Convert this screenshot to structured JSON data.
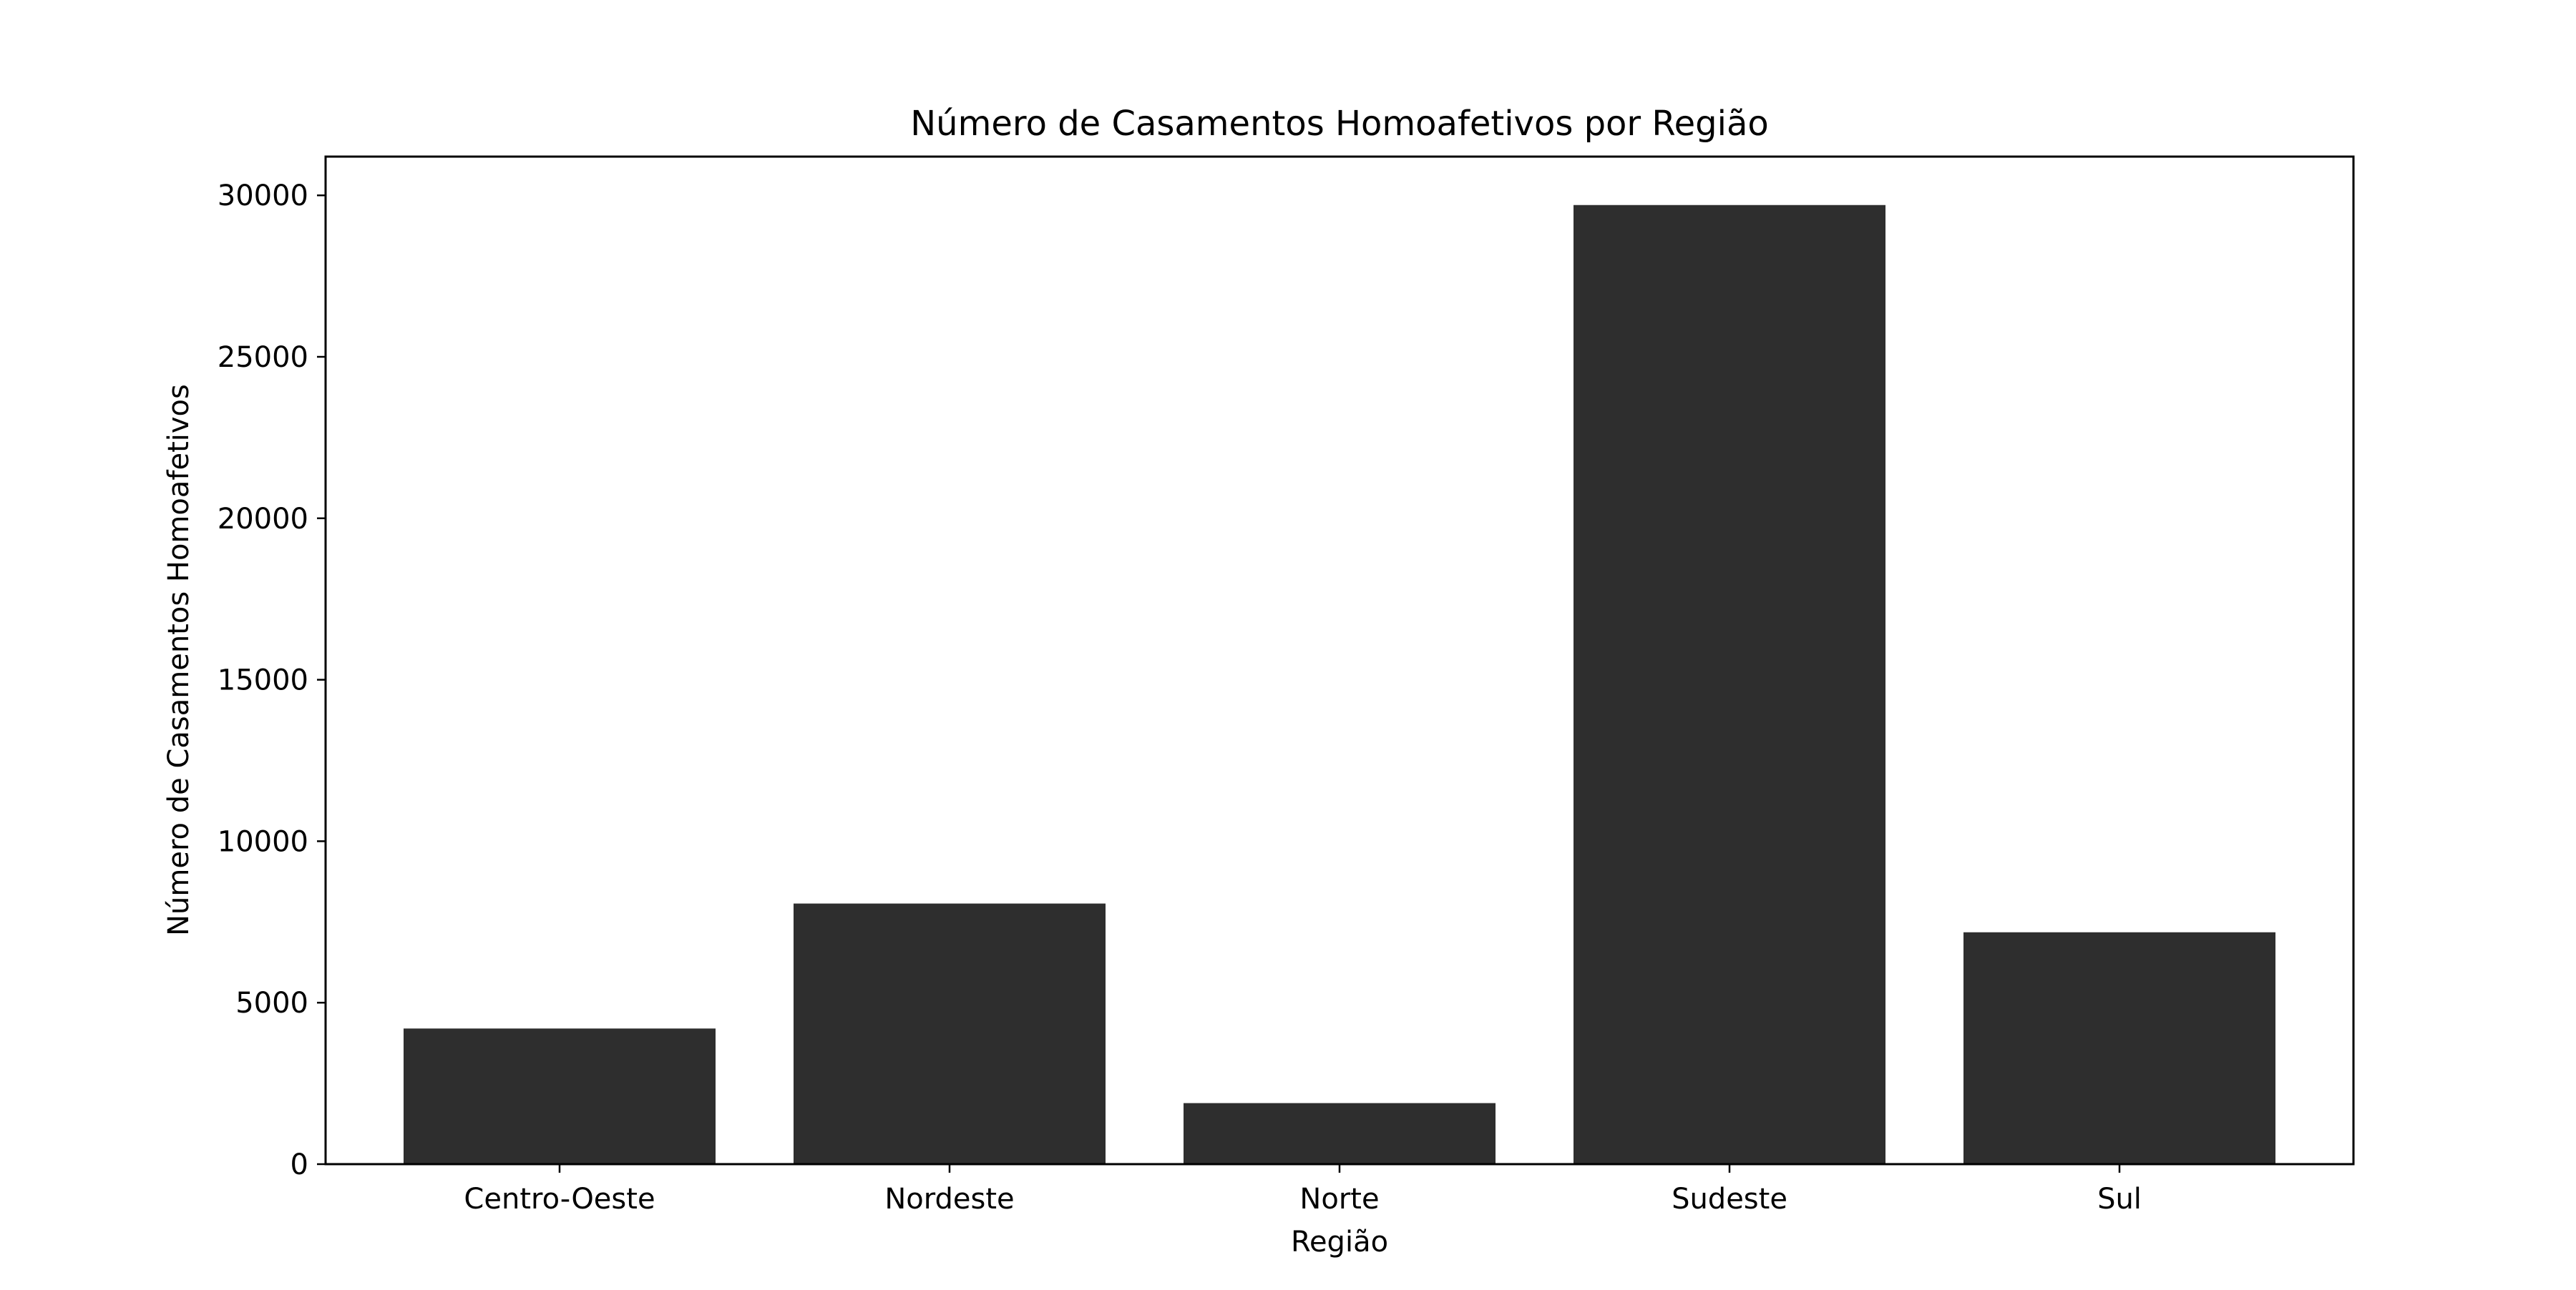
{
  "chart_data": {
    "type": "bar",
    "title": "Número de Casamentos Homoafetivos por Região",
    "xlabel": "Região",
    "ylabel": "Número de Casamentos Homoafetivos",
    "categories": [
      "Centro-Oeste",
      "Nordeste",
      "Norte",
      "Sudeste",
      "Sul"
    ],
    "values": [
      4200,
      8070,
      1890,
      29700,
      7180
    ],
    "ylim": [
      0,
      31200
    ],
    "yticks": [
      0,
      5000,
      10000,
      15000,
      20000,
      25000,
      30000
    ],
    "grid": false,
    "legend": "none",
    "bar_color": "#2e2e2e"
  }
}
